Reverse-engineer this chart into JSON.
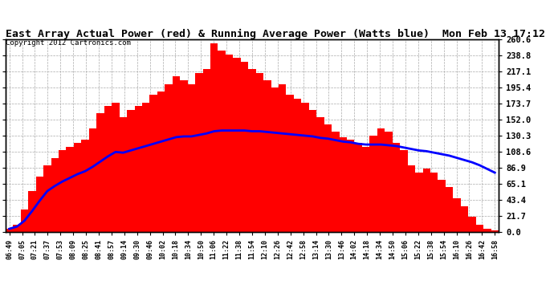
{
  "title": "East Array Actual Power (red) & Running Average Power (Watts blue)  Mon Feb 13 17:12",
  "copyright": "Copyright 2012 Cartronics.com",
  "ylabel_right_ticks": [
    0.0,
    21.7,
    43.4,
    65.1,
    86.9,
    108.6,
    130.3,
    152.0,
    173.7,
    195.4,
    217.1,
    238.8,
    260.6
  ],
  "ymax": 260.6,
  "ymin": 0.0,
  "bar_color": "red",
  "avg_color": "blue",
  "background_color": "white",
  "grid_color": "#aaaaaa",
  "title_fontsize": 9.5,
  "copyright_fontsize": 6.5,
  "tick_labels": [
    "06:49",
    "07:05",
    "07:21",
    "07:37",
    "07:53",
    "08:09",
    "08:25",
    "08:41",
    "08:57",
    "09:14",
    "09:30",
    "09:46",
    "10:02",
    "10:18",
    "10:34",
    "10:50",
    "11:06",
    "11:22",
    "11:38",
    "11:54",
    "12:10",
    "12:26",
    "12:42",
    "12:58",
    "13:14",
    "13:30",
    "13:46",
    "14:02",
    "14:18",
    "14:34",
    "14:50",
    "15:06",
    "15:22",
    "15:38",
    "15:54",
    "16:10",
    "16:26",
    "16:42",
    "16:58"
  ],
  "actual_power": [
    4,
    10,
    30,
    55,
    75,
    90,
    100,
    110,
    115,
    120,
    125,
    140,
    160,
    170,
    175,
    155,
    165,
    170,
    175,
    185,
    190,
    200,
    210,
    205,
    200,
    215,
    220,
    255,
    245,
    240,
    235,
    230,
    220,
    215,
    205,
    195,
    200,
    185,
    180,
    175,
    165,
    155,
    145,
    135,
    128,
    125,
    120,
    115,
    130,
    140,
    135,
    120,
    110,
    90,
    80,
    85,
    80,
    70,
    60,
    45,
    35,
    20,
    10,
    4,
    2
  ],
  "running_avg": [
    4,
    7,
    15,
    28,
    42,
    55,
    62,
    68,
    73,
    78,
    82,
    88,
    95,
    102,
    108,
    107,
    110,
    113,
    116,
    119,
    122,
    125,
    128,
    129,
    129,
    131,
    133,
    136,
    137,
    137,
    137,
    137,
    136,
    136,
    135,
    134,
    133,
    132,
    131,
    130,
    129,
    127,
    126,
    124,
    122,
    121,
    119,
    118,
    118,
    118,
    117,
    116,
    114,
    112,
    110,
    109,
    107,
    105,
    103,
    100,
    97,
    94,
    90,
    85,
    80
  ],
  "num_bars": 65,
  "tick_indices": [
    0,
    2,
    4,
    6,
    8,
    10,
    12,
    14,
    16,
    18,
    20,
    22,
    24,
    26,
    28,
    30,
    32,
    34,
    36,
    38,
    40,
    42,
    44,
    46,
    48,
    50,
    52,
    54,
    56,
    58,
    60,
    62,
    64,
    66,
    68,
    70,
    72,
    74,
    76
  ]
}
